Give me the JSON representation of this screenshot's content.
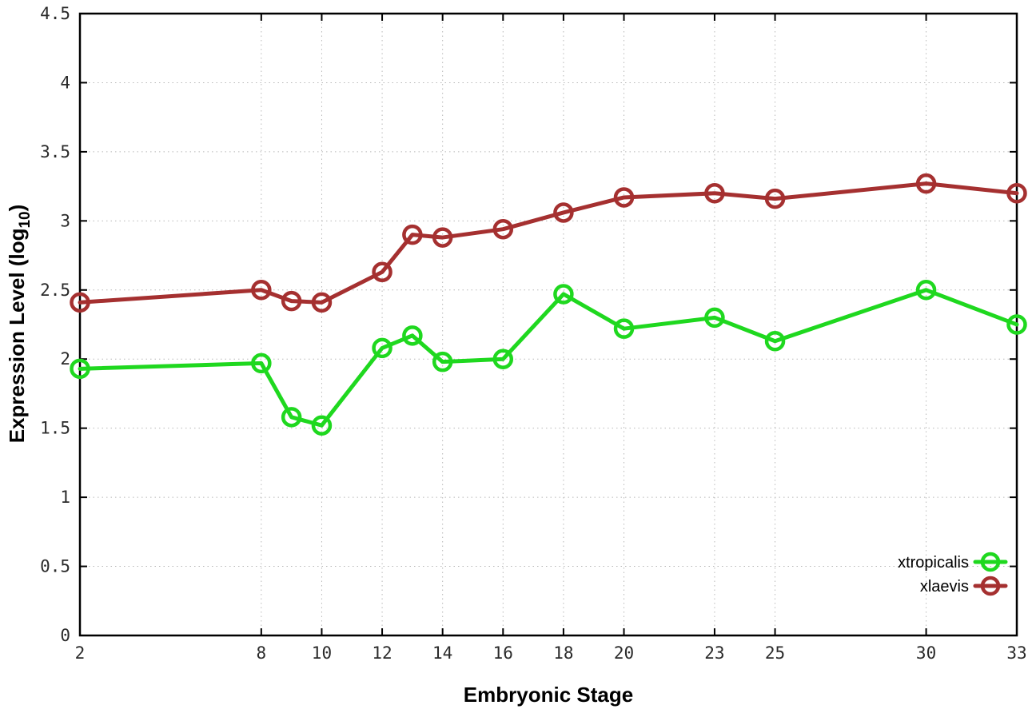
{
  "chart_data": {
    "type": "line",
    "title": "",
    "xlabel": "Embryonic Stage",
    "ylabel": "Expression Level (log10)",
    "ylabel_parts": {
      "pre": "Expression Level (log",
      "sub": "10",
      "post": ")"
    },
    "x": [
      2,
      8,
      9,
      10,
      12,
      13,
      14,
      16,
      18,
      20,
      23,
      25,
      30,
      33
    ],
    "series": [
      {
        "name": "xtropicalis",
        "color": "#1fd81f",
        "values": [
          1.93,
          1.97,
          1.58,
          1.52,
          2.08,
          2.17,
          1.98,
          2.0,
          2.47,
          2.22,
          2.3,
          2.13,
          2.5,
          2.25
        ]
      },
      {
        "name": "xlaevis",
        "color": "#a53030",
        "values": [
          2.41,
          2.5,
          2.42,
          2.41,
          2.63,
          2.9,
          2.88,
          2.94,
          3.06,
          3.17,
          3.2,
          3.16,
          3.27,
          3.2
        ]
      }
    ],
    "xticks": [
      2,
      8,
      10,
      12,
      14,
      16,
      18,
      20,
      23,
      25,
      30,
      33
    ],
    "yticks": [
      0,
      0.5,
      1,
      1.5,
      2,
      2.5,
      3,
      3.5,
      4,
      4.5
    ],
    "xlim": [
      2,
      33
    ],
    "ylim": [
      0,
      4.5
    ],
    "grid": true,
    "legend_position": "bottom-right-inside",
    "marker": "open-circle",
    "colors": {
      "grid": "#b8b8b8",
      "axis": "#000000",
      "tick_text": "#2a2a2a",
      "background": "#ffffff"
    }
  }
}
